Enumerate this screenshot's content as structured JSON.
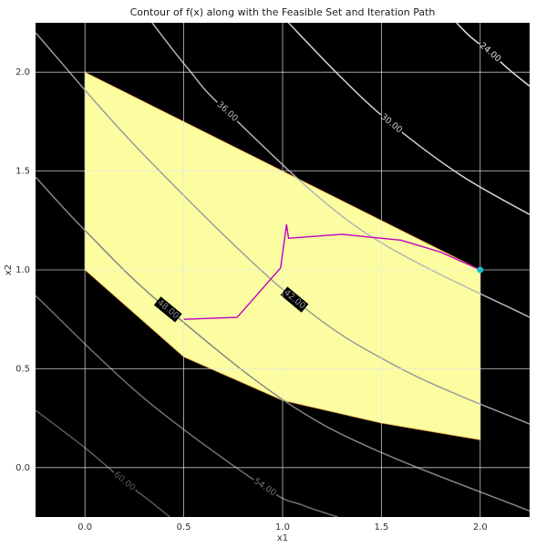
{
  "chart_data": {
    "type": "contour",
    "title": "Contour of f(x) along with the Feasible Set and Iteration Path",
    "xlabel": "x1",
    "ylabel": "x2",
    "xlim": [
      -0.25,
      2.25
    ],
    "ylim": [
      -0.25,
      2.25
    ],
    "xticks": [
      {
        "value": 0,
        "label": "0.0"
      },
      0.5,
      {
        "value": 1,
        "label": "1.0"
      },
      1.5,
      {
        "value": 2,
        "label": "2.0"
      }
    ],
    "yticks": [
      {
        "value": 0,
        "label": "0.0"
      },
      0.5,
      {
        "value": 1,
        "label": "1.0"
      },
      1.5,
      {
        "value": 2,
        "label": "2.0"
      }
    ],
    "grid": true,
    "background": "#000000",
    "contours": [
      {
        "level": 24,
        "level_label": "24.00",
        "color": "#e2e2e2",
        "x": [
          1.88,
          1.95,
          2.05,
          2.15,
          2.25
        ],
        "y": [
          2.25,
          2.18,
          2.1,
          2.01,
          1.93
        ]
      },
      {
        "level": 30,
        "level_label": "30.00",
        "color": "#cecece",
        "x": [
          1.03,
          1.3,
          1.55,
          1.9,
          2.25
        ],
        "y": [
          2.25,
          1.97,
          1.74,
          1.48,
          1.28
        ]
      },
      {
        "level": 36,
        "level_label": "36.00",
        "color": "#b6b6b6",
        "x": [
          0.34,
          0.52,
          0.72,
          1.4,
          2.25
        ],
        "y": [
          2.25,
          2.02,
          1.8,
          1.2,
          0.76
        ]
      },
      {
        "level": 42,
        "level_label": "42.00",
        "color": "#9c9c9c",
        "x": [
          -0.25,
          0.3,
          1.06,
          1.6,
          2.25
        ],
        "y": [
          2.2,
          1.58,
          0.85,
          0.5,
          0.22
        ]
      },
      {
        "level": 48,
        "level_label": "48.00",
        "color": "#868686",
        "x": [
          -0.25,
          0,
          0.42,
          1.2,
          2.25
        ],
        "y": [
          1.47,
          1.2,
          0.8,
          0.22,
          -0.22
        ]
      },
      {
        "level": 54,
        "level_label": "54.00",
        "color": "#707070",
        "x": [
          -0.25,
          0.3,
          0.91,
          1.1,
          1.28
        ],
        "y": [
          0.87,
          0.35,
          -0.1,
          -0.19,
          -0.25
        ]
      },
      {
        "level": 60,
        "level_label": "60.00",
        "color": "#5c5c5c",
        "x": [
          -0.25,
          0,
          0.2,
          0.33,
          0.43
        ],
        "y": [
          0.29,
          0.1,
          -0.07,
          -0.17,
          -0.25
        ]
      }
    ],
    "feasible_set": {
      "color": "#fbfda0",
      "edge_color": "#e0a040",
      "x": [
        0,
        2,
        2,
        1.5,
        1,
        0.5,
        0
      ],
      "y": [
        2,
        1,
        0.14,
        0.225,
        0.34,
        0.56,
        1
      ]
    },
    "path": {
      "color": "#c000c0",
      "x": [
        0.5,
        0.77,
        0.99,
        1.02,
        1.03,
        1.3,
        1.6,
        1.8,
        2
      ],
      "y": [
        0.75,
        0.76,
        1.01,
        1.23,
        1.16,
        1.18,
        1.15,
        1.09,
        1
      ]
    },
    "solution": {
      "color": "#17becf",
      "x": 2,
      "y": 1
    }
  }
}
